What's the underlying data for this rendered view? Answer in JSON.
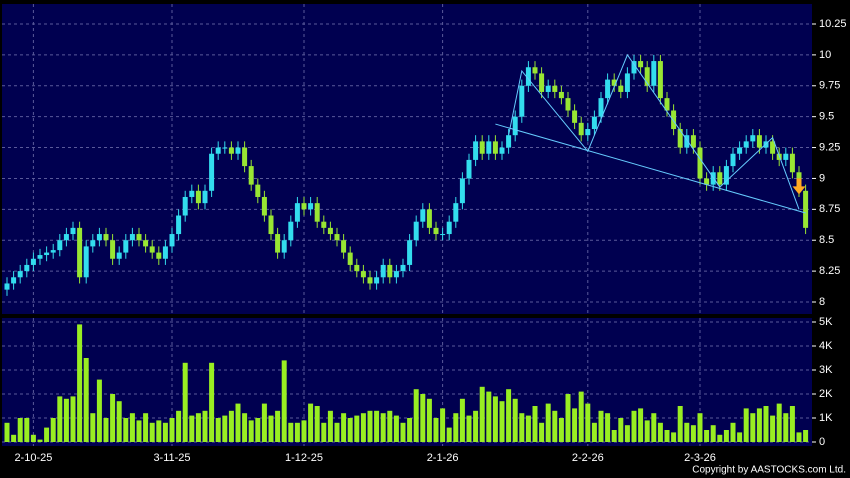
{
  "chart_data": {
    "type": "candlestick",
    "categories": [
      null,
      null,
      null,
      null,
      "2-10-25",
      null,
      null,
      null,
      null,
      null,
      null,
      null,
      null,
      null,
      null,
      null,
      null,
      null,
      null,
      null,
      null,
      null,
      null,
      null,
      null,
      "3-11-25",
      null,
      null,
      null,
      null,
      null,
      null,
      null,
      null,
      null,
      null,
      null,
      null,
      null,
      null,
      null,
      null,
      null,
      null,
      null,
      "1-12-25",
      null,
      null,
      null,
      null,
      null,
      null,
      null,
      null,
      null,
      null,
      null,
      null,
      null,
      null,
      null,
      null,
      null,
      null,
      null,
      null,
      "2-1-26",
      null,
      null,
      null,
      null,
      null,
      null,
      null,
      null,
      null,
      null,
      null,
      null,
      null,
      null,
      null,
      null,
      null,
      null,
      null,
      null,
      null,
      "2-2-26",
      null,
      null,
      null,
      null,
      null,
      null,
      null,
      null,
      null,
      null,
      null,
      null,
      null,
      null,
      null,
      null,
      "2-3-26",
      null,
      null,
      null,
      null,
      null,
      null,
      null,
      null,
      null,
      null,
      null,
      null,
      null,
      null,
      null,
      null
    ],
    "open": [
      8.1,
      8.15,
      8.2,
      8.25,
      8.3,
      8.35,
      8.38,
      8.4,
      8.42,
      8.5,
      8.55,
      8.6,
      8.2,
      8.45,
      8.5,
      8.55,
      8.5,
      8.35,
      8.4,
      8.5,
      8.55,
      8.5,
      8.45,
      8.4,
      8.35,
      8.45,
      8.55,
      8.7,
      8.85,
      8.9,
      8.8,
      8.9,
      9.2,
      9.25,
      9.25,
      9.2,
      9.25,
      9.1,
      8.95,
      8.85,
      8.7,
      8.55,
      8.4,
      8.5,
      8.65,
      8.8,
      8.75,
      8.8,
      8.65,
      8.6,
      8.55,
      8.5,
      8.4,
      8.3,
      8.25,
      8.2,
      8.15,
      8.2,
      8.3,
      8.2,
      8.25,
      8.3,
      8.5,
      8.65,
      8.75,
      8.6,
      8.55,
      8.55,
      8.65,
      8.8,
      9.0,
      9.15,
      9.3,
      9.2,
      9.3,
      9.2,
      9.25,
      9.35,
      9.5,
      9.75,
      9.9,
      9.85,
      9.7,
      9.75,
      9.7,
      9.65,
      9.55,
      9.45,
      9.35,
      9.4,
      9.5,
      9.65,
      9.8,
      9.75,
      9.7,
      9.85,
      9.95,
      9.9,
      9.75,
      9.95,
      9.65,
      9.55,
      9.4,
      9.25,
      9.35,
      9.25,
      9.0,
      8.95,
      9.05,
      8.95,
      9.1,
      9.2,
      9.25,
      9.3,
      9.35,
      9.25,
      9.3,
      9.2,
      9.15,
      9.2,
      9.05,
      8.9
    ],
    "high": [
      8.2,
      8.25,
      8.3,
      8.35,
      8.4,
      8.43,
      8.45,
      8.47,
      8.55,
      8.6,
      8.65,
      8.65,
      8.5,
      8.55,
      8.6,
      8.6,
      8.55,
      8.45,
      8.55,
      8.6,
      8.6,
      8.55,
      8.5,
      8.45,
      8.5,
      8.6,
      8.75,
      8.9,
      8.95,
      8.95,
      8.95,
      9.25,
      9.3,
      9.3,
      9.3,
      9.3,
      9.3,
      9.15,
      9.0,
      8.9,
      8.75,
      8.6,
      8.55,
      8.7,
      8.85,
      8.85,
      8.85,
      8.85,
      8.7,
      8.65,
      8.6,
      8.55,
      8.45,
      8.35,
      8.3,
      8.25,
      8.25,
      8.35,
      8.35,
      8.3,
      8.35,
      8.55,
      8.7,
      8.8,
      8.8,
      8.65,
      8.6,
      8.7,
      8.85,
      9.05,
      9.2,
      9.35,
      9.35,
      9.35,
      9.35,
      9.3,
      9.4,
      9.55,
      9.8,
      9.95,
      9.95,
      9.9,
      9.8,
      9.8,
      9.75,
      9.7,
      9.6,
      9.5,
      9.45,
      9.55,
      9.7,
      9.85,
      9.85,
      9.8,
      9.9,
      10.0,
      10.0,
      9.95,
      10.0,
      10.0,
      9.7,
      9.6,
      9.45,
      9.4,
      9.4,
      9.3,
      9.05,
      9.1,
      9.1,
      9.15,
      9.25,
      9.3,
      9.35,
      9.4,
      9.4,
      9.35,
      9.35,
      9.25,
      9.25,
      9.25,
      9.1,
      8.95
    ],
    "low": [
      8.05,
      8.1,
      8.15,
      8.2,
      8.25,
      8.3,
      8.33,
      8.35,
      8.37,
      8.45,
      8.5,
      8.15,
      8.15,
      8.4,
      8.45,
      8.45,
      8.3,
      8.3,
      8.35,
      8.45,
      8.45,
      8.4,
      8.35,
      8.3,
      8.3,
      8.4,
      8.5,
      8.65,
      8.8,
      8.75,
      8.75,
      8.85,
      9.15,
      9.2,
      9.15,
      9.15,
      9.05,
      8.9,
      8.8,
      8.65,
      8.5,
      8.35,
      8.35,
      8.45,
      8.6,
      8.7,
      8.7,
      8.6,
      8.55,
      8.5,
      8.45,
      8.35,
      8.25,
      8.2,
      8.15,
      8.1,
      8.1,
      8.15,
      8.15,
      8.15,
      8.2,
      8.25,
      8.45,
      8.6,
      8.55,
      8.5,
      8.5,
      8.5,
      8.6,
      8.75,
      8.95,
      9.1,
      9.15,
      9.15,
      9.15,
      9.15,
      9.2,
      9.3,
      9.45,
      9.7,
      9.8,
      9.65,
      9.65,
      9.65,
      9.6,
      9.5,
      9.4,
      9.3,
      9.3,
      9.35,
      9.45,
      9.6,
      9.7,
      9.65,
      9.65,
      9.8,
      9.85,
      9.7,
      9.7,
      9.6,
      9.5,
      9.35,
      9.2,
      9.2,
      9.2,
      8.95,
      8.9,
      8.9,
      8.9,
      8.9,
      9.05,
      9.15,
      9.2,
      9.25,
      9.2,
      9.2,
      9.15,
      9.1,
      9.1,
      9.0,
      8.85,
      8.55
    ],
    "close": [
      8.15,
      8.2,
      8.25,
      8.3,
      8.35,
      8.38,
      8.4,
      8.42,
      8.5,
      8.55,
      8.6,
      8.2,
      8.45,
      8.5,
      8.55,
      8.5,
      8.35,
      8.4,
      8.5,
      8.55,
      8.5,
      8.45,
      8.4,
      8.35,
      8.45,
      8.55,
      8.7,
      8.85,
      8.9,
      8.8,
      8.9,
      9.2,
      9.25,
      9.25,
      9.2,
      9.25,
      9.1,
      8.95,
      8.85,
      8.7,
      8.55,
      8.4,
      8.5,
      8.65,
      8.8,
      8.75,
      8.8,
      8.65,
      8.6,
      8.55,
      8.5,
      8.4,
      8.3,
      8.25,
      8.2,
      8.15,
      8.2,
      8.3,
      8.2,
      8.25,
      8.3,
      8.5,
      8.65,
      8.75,
      8.6,
      8.55,
      8.55,
      8.65,
      8.8,
      9.0,
      9.15,
      9.3,
      9.2,
      9.3,
      9.2,
      9.25,
      9.35,
      9.5,
      9.75,
      9.9,
      9.85,
      9.7,
      9.75,
      9.7,
      9.65,
      9.55,
      9.45,
      9.35,
      9.4,
      9.5,
      9.65,
      9.8,
      9.75,
      9.7,
      9.85,
      9.95,
      9.9,
      9.75,
      9.95,
      9.65,
      9.55,
      9.4,
      9.25,
      9.35,
      9.25,
      9.0,
      8.95,
      9.05,
      8.95,
      9.1,
      9.2,
      9.25,
      9.3,
      9.35,
      9.25,
      9.3,
      9.2,
      9.15,
      9.2,
      9.05,
      8.9,
      8.6
    ],
    "volume": [
      800,
      300,
      1000,
      1000,
      300,
      100,
      600,
      1000,
      1900,
      1800,
      1900,
      4900,
      3500,
      1200,
      2600,
      1000,
      2000,
      1700,
      1000,
      1200,
      900,
      1200,
      800,
      900,
      800,
      1000,
      1300,
      3300,
      1100,
      1200,
      1300,
      3300,
      1000,
      1100,
      1300,
      1600,
      1200,
      900,
      1000,
      1600,
      1100,
      1300,
      3400,
      800,
      800,
      900,
      1600,
      1500,
      800,
      1300,
      800,
      1200,
      1000,
      1100,
      1200,
      1300,
      1300,
      1200,
      1300,
      1100,
      800,
      1000,
      2200,
      2000,
      1800,
      1000,
      1400,
      600,
      1200,
      1800,
      1100,
      1300,
      2300,
      2100,
      1900,
      1700,
      2200,
      1800,
      1200,
      1100,
      1500,
      800,
      1600,
      1300,
      1000,
      2000,
      1400,
      2100,
      1600,
      800,
      1300,
      1200,
      500,
      1000,
      700,
      1300,
      1400,
      900,
      1200,
      800,
      500,
      400,
      1500,
      800,
      700,
      1200,
      500,
      700,
      300,
      500,
      800,
      400,
      1400,
      1200,
      1400,
      1500,
      1100,
      1600,
      1200,
      1500,
      400,
      500
    ],
    "up_color": "#33ddee",
    "down_color": "#99e633",
    "volume_color": "#99ee22",
    "ylim": [
      8,
      10.25
    ],
    "yticks": [
      8,
      8.25,
      8.5,
      8.75,
      9,
      9.25,
      9.5,
      9.75,
      10,
      10.25
    ],
    "y2lim": [
      0,
      5000
    ],
    "y2ticks": [
      0,
      {
        "value": 1000,
        "label": "1K"
      },
      {
        "value": 2000,
        "label": "2K"
      },
      {
        "value": 3000,
        "label": "3K"
      },
      {
        "value": 4000,
        "label": "4K"
      },
      {
        "value": 5000,
        "label": "5K"
      }
    ],
    "grid": true,
    "trendlines": [
      {
        "color": "#66ccff",
        "points": [
          {
            "x": 74,
            "y": 9.44
          },
          {
            "x": 121,
            "y": 8.72
          }
        ]
      },
      {
        "color": "#66ccff",
        "points": [
          {
            "x": 76,
            "y": 9.35
          },
          {
            "x": 78,
            "y": 9.87
          },
          {
            "x": 88,
            "y": 9.22
          },
          {
            "x": 94,
            "y": 10.0
          },
          {
            "x": 108,
            "y": 8.93
          },
          {
            "x": 116,
            "y": 9.33
          },
          {
            "x": 120,
            "y": 8.75
          }
        ]
      }
    ],
    "arrow": {
      "x": 120,
      "y": 8.92,
      "color": "#ffaa22"
    },
    "copyright": "Copyright by AASTOCKS.com Ltd."
  }
}
